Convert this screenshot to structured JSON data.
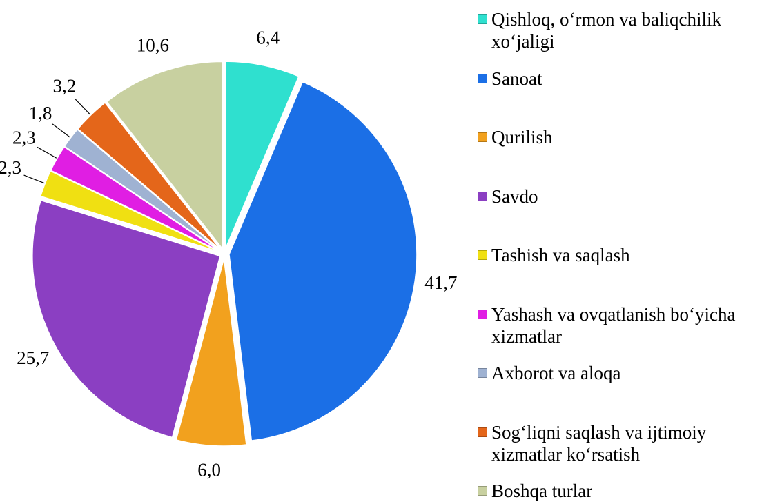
{
  "chart_data": {
    "type": "pie",
    "categories": [
      "Qishloq, o‘rmon va baliqchilik xo‘jaligi",
      "Sanoat",
      "Qurilish",
      "Savdo",
      "Tashish va saqlash",
      "Yashash va ovqatlanish bo‘yicha xizmatlar",
      "Axborot va aloqa",
      "Sog‘liqni saqlash va ijtimoiy xizmatlar ko‘rsatish",
      "Boshqa turlar"
    ],
    "values": [
      6.4,
      41.7,
      6.0,
      25.7,
      2.3,
      2.3,
      1.8,
      3.2,
      10.6
    ],
    "value_labels": [
      "6,4",
      "41,7",
      "6,0",
      "25,7",
      "2,3",
      "2,3",
      "1,8",
      "3,2",
      "10,6"
    ],
    "colors": [
      "#2fe0cf",
      "#1b6fe6",
      "#f2a11e",
      "#8b3fc2",
      "#f0e012",
      "#e01ee3",
      "#9fb2d2",
      "#e4661a",
      "#c8d0a0"
    ]
  }
}
